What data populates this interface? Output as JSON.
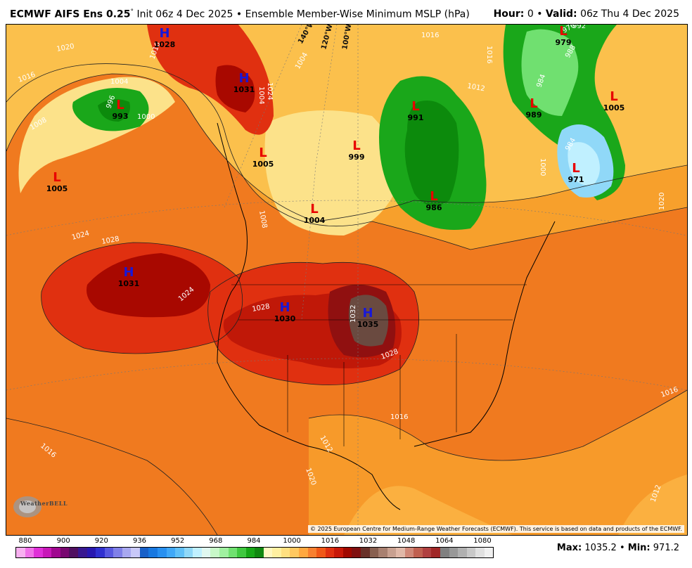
{
  "header": {
    "model": "ECMWF AIFS Ens 0.25",
    "degree_symbol": "°",
    "init": "Init 06z 4 Dec 2025",
    "sep": "•",
    "product": "Ensemble Member-Wise Minimum MSLP (hPa)",
    "hour_label": "Hour:",
    "hour_value": "0",
    "valid_label": "Valid:",
    "valid_value": "06z Thu 4 Dec 2025"
  },
  "map": {
    "pressure_centers": [
      {
        "type": "H",
        "value": "1028"
      },
      {
        "type": "H",
        "value": "1031"
      },
      {
        "type": "L",
        "value": "993"
      },
      {
        "type": "L",
        "value": "1005"
      },
      {
        "type": "L",
        "value": "1005"
      },
      {
        "type": "L",
        "value": "999"
      },
      {
        "type": "L",
        "value": "991"
      },
      {
        "type": "L",
        "value": "1004"
      },
      {
        "type": "L",
        "value": "986"
      },
      {
        "type": "L",
        "value": "979"
      },
      {
        "type": "L",
        "value": "989"
      },
      {
        "type": "L",
        "value": "1005"
      },
      {
        "type": "L",
        "value": "971"
      },
      {
        "type": "H",
        "value": "1031"
      },
      {
        "type": "H",
        "value": "1030"
      },
      {
        "type": "H",
        "value": "1035"
      }
    ],
    "isobar_labels": [
      "1020",
      "1016",
      "1008",
      "1004",
      "996",
      "1000",
      "1024",
      "1028",
      "1024",
      "1004",
      "1012",
      "1016",
      "1016",
      "1004",
      "1016",
      "1024",
      "1020",
      "1028",
      "1032",
      "1028",
      "1016",
      "1012",
      "1020",
      "1016",
      "1016",
      "1012",
      "976",
      "984",
      "988",
      "992",
      "1000",
      "984",
      "1008"
    ],
    "meridians": [
      "140°W",
      "120°W",
      "100°W"
    ],
    "logo_text": "WeatherBELL",
    "copyright": "© 2025 European Centre for Medium-Range Weather Forecasts (ECMWF). This service is based on data and products of the ECMWF."
  },
  "colorbar": {
    "ticks": [
      "880",
      "900",
      "920",
      "936",
      "952",
      "968",
      "984",
      "1000",
      "1016",
      "1032",
      "1048",
      "1064",
      "1080"
    ],
    "colors": [
      "#f8b0f0",
      "#f070e8",
      "#e030d8",
      "#c818b8",
      "#a00890",
      "#780870",
      "#501060",
      "#381890",
      "#2818b0",
      "#3030d0",
      "#5858e0",
      "#8080e8",
      "#a8a8f0",
      "#c8c8f8",
      "#1860c8",
      "#1878e0",
      "#2890f0",
      "#40a8f8",
      "#60c0f8",
      "#90d8f8",
      "#c0f0ff",
      "#e0f8f0",
      "#c8f8c8",
      "#a0f0a0",
      "#70e070",
      "#40c840",
      "#18a818",
      "#108810",
      "#fff8c0",
      "#fff0a0",
      "#ffe080",
      "#ffc860",
      "#ffa840",
      "#f88030",
      "#f05818",
      "#e03010",
      "#c81808",
      "#a00800",
      "#801010",
      "#683028",
      "#886050",
      "#a88070",
      "#c8a090",
      "#e0b8a8",
      "#d08878",
      "#c06050",
      "#b04040",
      "#a02828",
      "#808080",
      "#989898",
      "#b0b0b0",
      "#c8c8c8",
      "#e0e0e0",
      "#f0f0f0"
    ]
  },
  "stats": {
    "max_label": "Max:",
    "max_value": "1035.2",
    "min_label": "Min:",
    "min_value": "971.2"
  }
}
